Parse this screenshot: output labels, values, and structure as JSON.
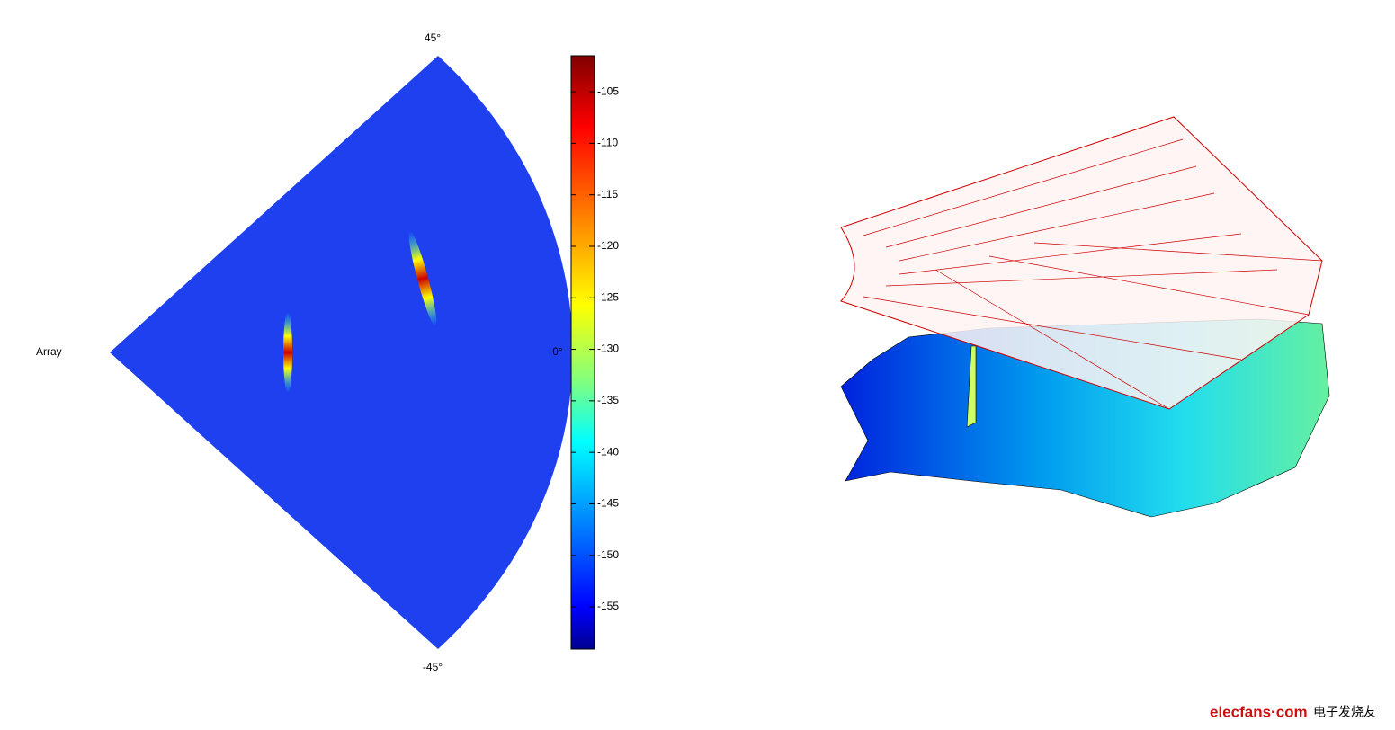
{
  "sector_plot": {
    "array_label": "Array",
    "angle_top": "45°",
    "angle_middle": "0°",
    "angle_bottom": "-45°"
  },
  "colorbar": {
    "ylim": [
      -159.1,
      -101.5
    ],
    "yticks": [
      -105,
      -110,
      -115,
      -120,
      -125,
      -130,
      -135,
      -140,
      -145,
      -150,
      -155
    ]
  },
  "watermark": {
    "site": "elecfans·com",
    "name": "电子发烧友"
  }
}
